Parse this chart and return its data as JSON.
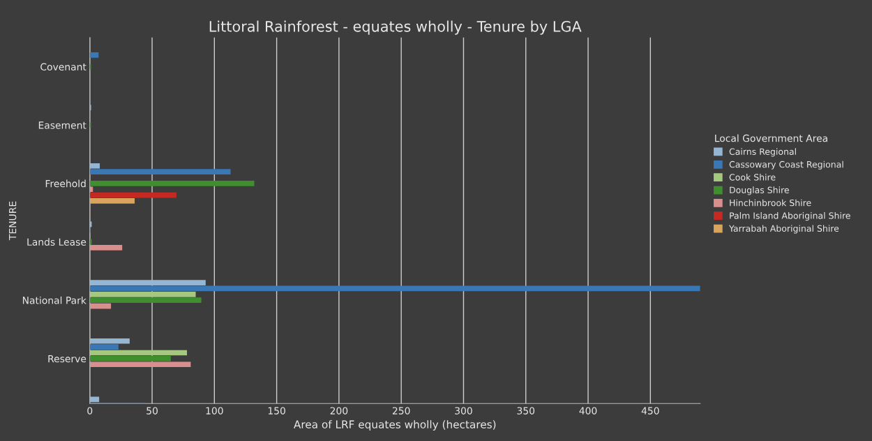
{
  "chart_data": {
    "type": "bar",
    "orientation": "horizontal",
    "title": "Littoral Rainforest - equates wholly - Tenure by LGA",
    "xlabel": "Area of LRF equates wholly (hectares)",
    "ylabel": "TENURE",
    "legend_title": "Local Government Area",
    "categories": [
      "Covenant",
      "Easement",
      "Freehold",
      "Lands Lease",
      "National Park",
      "Reserve",
      null
    ],
    "series": [
      {
        "name": "Cairns Regional",
        "color": "#94b6d2",
        "values": [
          null,
          1,
          8,
          1.5,
          93,
          32,
          7.5
        ]
      },
      {
        "name": "Cassowary Coast Regional",
        "color": "#3a78b5",
        "values": [
          7,
          null,
          113,
          0.5,
          490,
          23,
          44.5
        ]
      },
      {
        "name": "Cook Shire",
        "color": "#a5c77f",
        "values": [
          null,
          null,
          null,
          null,
          85,
          78,
          null
        ]
      },
      {
        "name": "Douglas Shire",
        "color": "#3f8f2f",
        "values": [
          1,
          1,
          132,
          1.5,
          89.5,
          65,
          null
        ]
      },
      {
        "name": "Hinchinbrook Shire",
        "color": "#d98f8d",
        "values": [
          null,
          null,
          2.5,
          26,
          17,
          81,
          null
        ]
      },
      {
        "name": "Palm Island Aboriginal Shire",
        "color": "#c42a22",
        "values": [
          null,
          null,
          69.5,
          null,
          null,
          null,
          null
        ]
      },
      {
        "name": "Yarrabah Aboriginal Shire",
        "color": "#d9a45c",
        "values": [
          null,
          null,
          36,
          null,
          null,
          null,
          null
        ]
      }
    ],
    "xlim": [
      0,
      490
    ],
    "xticks": [
      0,
      50,
      100,
      150,
      200,
      250,
      300,
      350,
      400,
      450
    ],
    "grid": "x",
    "legend": "right"
  }
}
